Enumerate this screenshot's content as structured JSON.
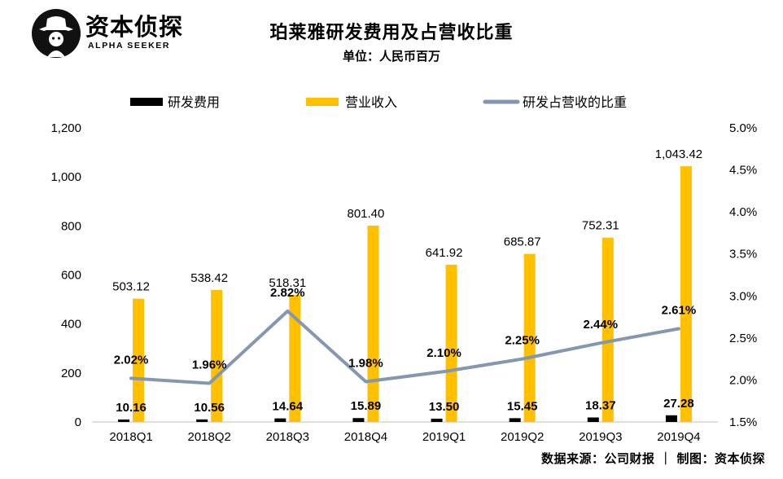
{
  "logo": {
    "name_cn": "资本侦探",
    "name_en": "ALPHA SEEKER"
  },
  "header": {
    "title": "珀莱雅研发费用及占营收比重",
    "unit": "单位：人民币百万"
  },
  "footer": {
    "source": "数据来源：公司财报 ｜ 制图：资本侦探"
  },
  "colors": {
    "rd": "#000000",
    "revenue": "#FFC000",
    "ratio_line": "#8497B0"
  },
  "chart_data": {
    "type": "bar",
    "categories": [
      "2018Q1",
      "2018Q2",
      "2018Q3",
      "2018Q4",
      "2019Q1",
      "2019Q2",
      "2019Q3",
      "2019Q4"
    ],
    "series": [
      {
        "name": "研发费用",
        "type": "bar",
        "axis": "left",
        "values": [
          10.16,
          10.56,
          14.64,
          15.89,
          13.5,
          15.45,
          18.37,
          27.28
        ],
        "labels": [
          "10.16",
          "10.56",
          "14.64",
          "15.89",
          "13.50",
          "15.45",
          "18.37",
          "27.28"
        ]
      },
      {
        "name": "营业收入",
        "type": "bar",
        "axis": "left",
        "values": [
          503.12,
          538.42,
          518.31,
          801.4,
          641.92,
          685.87,
          752.31,
          1043.42
        ],
        "labels": [
          "503.12",
          "538.42",
          "518.31",
          "801.40",
          "641.92",
          "685.87",
          "752.31",
          "1,043.42"
        ]
      },
      {
        "name": "研发占营收的比重",
        "type": "line",
        "axis": "right",
        "values": [
          2.02,
          1.96,
          2.82,
          1.98,
          2.1,
          2.25,
          2.44,
          2.61
        ],
        "labels": [
          "2.02%",
          "1.96%",
          "2.82%",
          "1.98%",
          "2.10%",
          "2.25%",
          "2.44%",
          "2.61%"
        ]
      }
    ],
    "left_axis": {
      "range": [
        0,
        1200
      ],
      "ticks": [
        "0",
        "200",
        "400",
        "600",
        "800",
        "1,000",
        "1,200"
      ],
      "values": [
        0,
        200,
        400,
        600,
        800,
        1000,
        1200
      ]
    },
    "right_axis": {
      "range": [
        1.5,
        5.0
      ],
      "ticks": [
        "1.5%",
        "2.0%",
        "2.5%",
        "3.0%",
        "3.5%",
        "4.0%",
        "4.5%",
        "5.0%"
      ],
      "values": [
        1.5,
        2.0,
        2.5,
        3.0,
        3.5,
        4.0,
        4.5,
        5.0
      ]
    },
    "grid": false,
    "legend_position": "top"
  }
}
